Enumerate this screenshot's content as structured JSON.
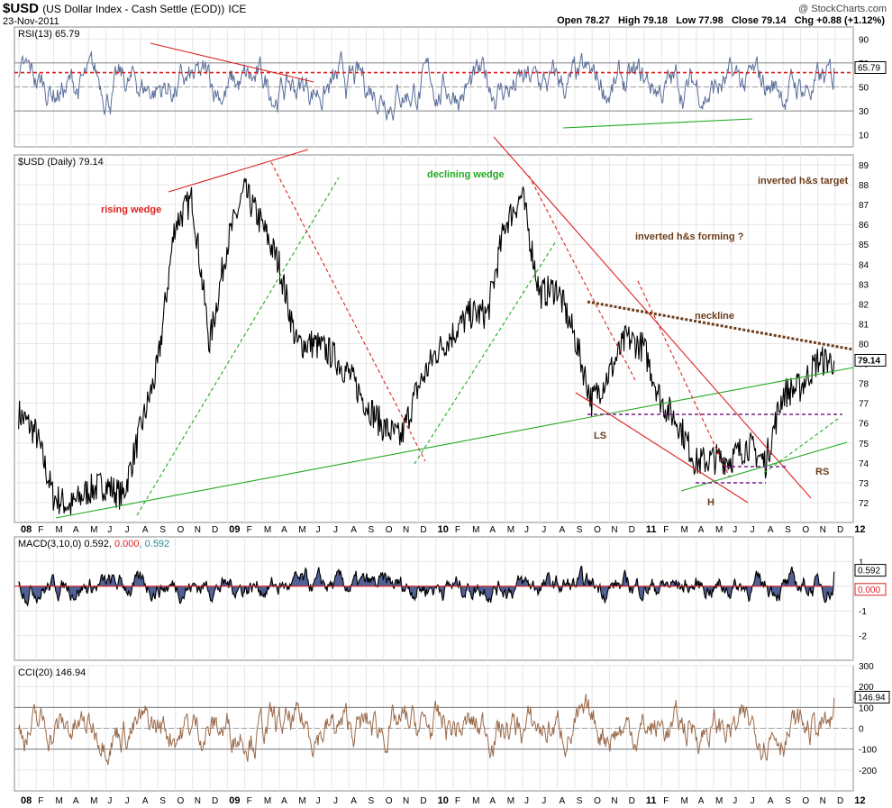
{
  "header": {
    "symbol": "$USD",
    "name": "(US Dollar Index - Cash Settle (EOD))",
    "exchange": "ICE",
    "date": "23-Nov-2011",
    "watermark": "@ StockCharts.com",
    "open_label": "Open",
    "open": "78.27",
    "high_label": "High",
    "high": "79.18",
    "low_label": "Low",
    "low": "77.98",
    "close_label": "Close",
    "close": "79.14",
    "chg_label": "Chg",
    "chg": "+0.88 (+1.12%)"
  },
  "panels": {
    "rsi": {
      "legend": "RSI(13) 65.79",
      "last": "65.79",
      "ticks": [
        90,
        70,
        50,
        30,
        10
      ],
      "color": "#5a6f9a"
    },
    "price": {
      "legend": "$USD (Daily) 79.14",
      "last": "79.14",
      "ticks": [
        89,
        88,
        87,
        86,
        85,
        84,
        83,
        82,
        81,
        80,
        79,
        78,
        77,
        76,
        75,
        74,
        73,
        72
      ]
    },
    "macd": {
      "legend_prefix": "MACD(3,10,0)",
      "v1": "0.592",
      "v2": "0.000",
      "v3": "0.592",
      "last1": "0.592",
      "last2": "0.000",
      "ticks": [
        1,
        0,
        -1,
        -2
      ]
    },
    "cci": {
      "legend": "CCI(20) 146.94",
      "last": "146.94",
      "ticks": [
        300,
        200,
        100,
        0,
        -100,
        -200
      ]
    }
  },
  "xaxis": {
    "labels": [
      "08",
      "F",
      "M",
      "A",
      "M",
      "J",
      "J",
      "A",
      "S",
      "O",
      "N",
      "D",
      "09",
      "F",
      "M",
      "A",
      "M",
      "J",
      "J",
      "A",
      "S",
      "O",
      "N",
      "D",
      "10",
      "F",
      "M",
      "A",
      "M",
      "J",
      "J",
      "A",
      "S",
      "O",
      "N",
      "D",
      "11",
      "F",
      "M",
      "A",
      "M",
      "J",
      "J",
      "A",
      "S",
      "O",
      "N",
      "D",
      "12"
    ],
    "bold": [
      "08",
      "09",
      "10",
      "11",
      "12"
    ]
  },
  "annotations": {
    "rising_wedge": "rising wedge",
    "declining_wedge": "declining wedge",
    "hs_forming": "inverted h&s forming ?",
    "hs_target": "inverted h&s target",
    "neckline": "neckline",
    "ls": "LS",
    "h": "H",
    "rs": "RS"
  },
  "chart_data": {
    "type": "line",
    "title": "$USD (US Dollar Index - Cash Settle (EOD)) ICE",
    "series": [
      {
        "name": "$USD (Daily)",
        "x": [
          "2008-01",
          "2008-02",
          "2008-03",
          "2008-04",
          "2008-05",
          "2008-06",
          "2008-07",
          "2008-08",
          "2008-09",
          "2008-10",
          "2008-11",
          "2008-12",
          "2009-01",
          "2009-02",
          "2009-03",
          "2009-04",
          "2009-05",
          "2009-06",
          "2009-07",
          "2009-08",
          "2009-09",
          "2009-10",
          "2009-11",
          "2009-12",
          "2010-01",
          "2010-02",
          "2010-03",
          "2010-04",
          "2010-05",
          "2010-06",
          "2010-07",
          "2010-08",
          "2010-09",
          "2010-10",
          "2010-11",
          "2010-12",
          "2011-01",
          "2011-02",
          "2011-03",
          "2011-04",
          "2011-05",
          "2011-06",
          "2011-07",
          "2011-08",
          "2011-09",
          "2011-10",
          "2011-11"
        ],
        "values": [
          76.5,
          75.5,
          72.3,
          71.8,
          72.6,
          72.9,
          72.3,
          75.6,
          78.8,
          86.0,
          87.3,
          80.0,
          85.0,
          87.7,
          86.0,
          84.0,
          80.0,
          80.0,
          79.5,
          78.5,
          77.0,
          75.8,
          75.2,
          77.8,
          79.5,
          80.5,
          81.5,
          81.5,
          86.0,
          87.5,
          82.5,
          82.8,
          80.4,
          77.1,
          78.5,
          80.3,
          79.8,
          77.1,
          76.0,
          74.0,
          74.2,
          74.2,
          74.9,
          74.0,
          77.5,
          77.8,
          79.14
        ]
      }
    ],
    "rsi": {
      "name": "RSI(13)",
      "last": 65.79,
      "ylim": [
        0,
        100
      ],
      "levels": [
        70,
        30
      ]
    },
    "macd": {
      "name": "MACD(3,10,0)",
      "last": 0.592,
      "ylim": [
        -3,
        2
      ]
    },
    "cci": {
      "name": "CCI(20)",
      "last": 146.94,
      "ylim": [
        -300,
        300
      ],
      "levels": [
        100,
        -100
      ]
    },
    "ylim": [
      71,
      89.5
    ],
    "grid": true
  }
}
